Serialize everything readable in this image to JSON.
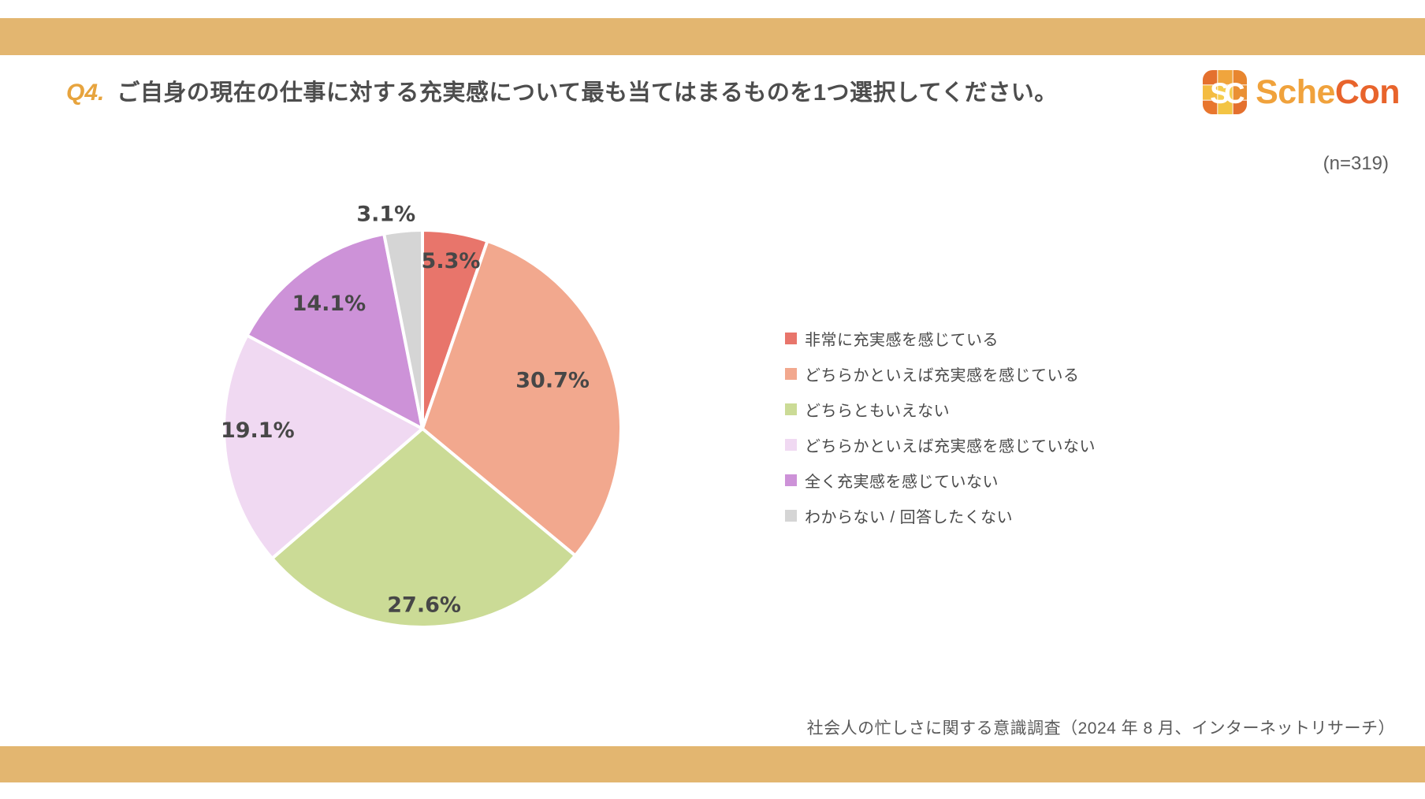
{
  "header": {
    "question_no": "Q4.",
    "title": "ご自身の現在の仕事に対する充実感について最も当てはまるものを1つ選択してください。"
  },
  "logo": {
    "icon_text": "SC",
    "name_part1": "Sche",
    "name_part2": "Con"
  },
  "survey": {
    "sample_size": "(n=319)"
  },
  "chart_data": {
    "type": "pie",
    "title": "",
    "start_angle_deg": 0,
    "direction": "clockwise",
    "legend_position": "right",
    "labels": [
      "非常に充実感を感じている",
      "どちらかといえば充実感を感じている",
      "どちらともいえない",
      "どちらかといえば充実感を感じていない",
      "全く充実感を感じていない",
      "わからない / 回答したくない"
    ],
    "values": [
      5.3,
      30.7,
      27.6,
      19.1,
      14.1,
      3.1
    ],
    "value_labels": [
      "5.3%",
      "30.7%",
      "27.6%",
      "19.1%",
      "14.1%",
      "3.1%"
    ],
    "colors": [
      "#E8756B",
      "#F2A88E",
      "#CBDB96",
      "#F0D9F2",
      "#CD92D8",
      "#D5D5D5"
    ]
  },
  "footer": {
    "source": "社会人の忙しさに関する意識調査（2024 年 8 月、インターネットリサーチ）"
  },
  "theme": {
    "bar_color": "#E3B670",
    "accent_orange": "#E7A43E",
    "logo_amber": "#F0A23C",
    "logo_orange": "#E8642C",
    "slice_stroke": "#FFFFFF",
    "label_color": "#474747"
  }
}
